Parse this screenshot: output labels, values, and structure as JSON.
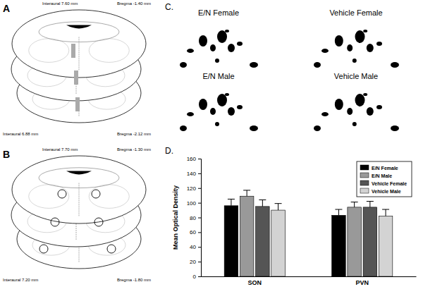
{
  "chart_data": {
    "type": "bar",
    "y_label": "Mean Optical Density",
    "categories": [
      "SON",
      "PVN"
    ],
    "series": [
      {
        "name": "E/N Female",
        "color": "#000000",
        "values": [
          96,
          83
        ],
        "errors": [
          9,
          8
        ]
      },
      {
        "name": "E/N Male",
        "color": "#999999",
        "values": [
          109,
          94
        ],
        "errors": [
          8,
          7
        ]
      },
      {
        "name": "Vehicle Female",
        "color": "#555555",
        "values": [
          95,
          94
        ],
        "errors": [
          9,
          8
        ]
      },
      {
        "name": "Vehicle Male",
        "color": "#d3d3d3",
        "values": [
          90,
          82
        ],
        "errors": [
          9,
          9
        ]
      }
    ],
    "ylim": [
      0,
      160
    ],
    "yticks": [
      0,
      20,
      40,
      60,
      80,
      100,
      120,
      140,
      160
    ],
    "grid": false,
    "legend": "top-right"
  },
  "panels": {
    "a": {
      "label": "A",
      "sections": [
        {
          "interaural": "Interaural 7.60 mm",
          "bregma": "Bregma -1.40 mm"
        },
        {
          "interaural": "Interaural 6.88 mm",
          "bregma": "Bregma -2.12 mm"
        }
      ]
    },
    "b": {
      "label": "B",
      "sections": [
        {
          "interaural": "Interaural 7.70 mm",
          "bregma": "Bregma -1.30 mm"
        },
        {
          "interaural": "Interaural 7.20 mm",
          "bregma": "Bregma -1.80 mm"
        }
      ]
    },
    "c": {
      "label": "C.",
      "images": [
        "E/N Female",
        "Vehicle Female",
        "E/N Male",
        "Vehicle Male"
      ]
    },
    "d": {
      "label": "D."
    }
  }
}
